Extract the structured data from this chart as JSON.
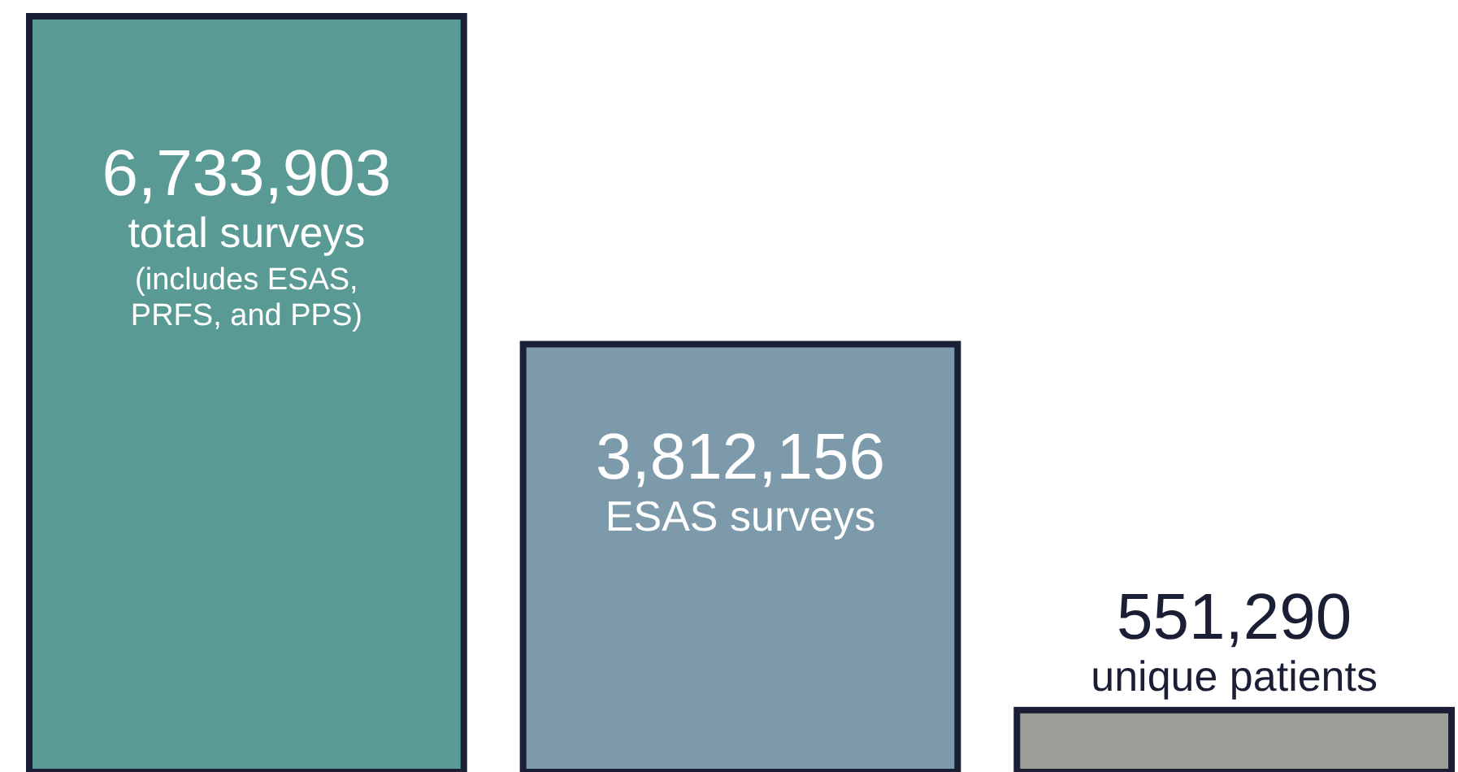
{
  "chart_data": {
    "type": "bar",
    "categories": [
      "total surveys",
      "ESAS surveys",
      "unique patients"
    ],
    "values": [
      6733903,
      3812156,
      551290
    ],
    "value_labels": [
      "6,733,903",
      "3,812,156",
      "551,290"
    ],
    "colors": [
      "#5a9a94",
      "#7d9aab",
      "#9a9e96"
    ],
    "annotations": [
      "(includes ESAS, PRFS, and PPS)"
    ]
  }
}
